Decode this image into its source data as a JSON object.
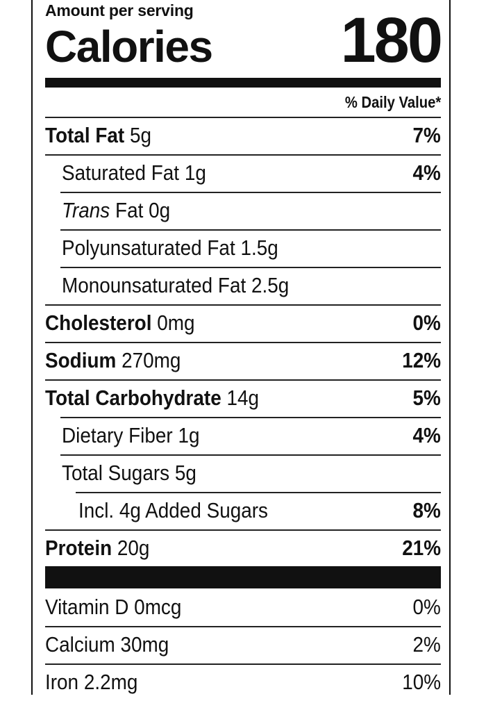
{
  "header": {
    "amount_label": "Amount per serving",
    "calories_label": "Calories",
    "calories_value": "180",
    "daily_value_header": "% Daily Value*"
  },
  "nutrients": [
    {
      "name": "Total Fat",
      "amount": "5g",
      "dv": "7%"
    },
    {
      "name": "Saturated Fat",
      "amount": "1g",
      "dv": "4%"
    },
    {
      "name_italic": "Trans",
      "name": "Fat",
      "amount": "0g"
    },
    {
      "name": "Polyunsaturated Fat",
      "amount": "1.5g"
    },
    {
      "name": "Monounsaturated Fat",
      "amount": "2.5g"
    },
    {
      "name": "Cholesterol",
      "amount": "0mg",
      "dv": "0%"
    },
    {
      "name": "Sodium",
      "amount": "270mg",
      "dv": "12%"
    },
    {
      "name": "Total Carbohydrate",
      "amount": "14g",
      "dv": "5%"
    },
    {
      "name": "Dietary Fiber",
      "amount": "1g",
      "dv": "4%"
    },
    {
      "name": "Total Sugars",
      "amount": "5g"
    },
    {
      "text": "Incl. 4g Added Sugars",
      "dv": "8%"
    },
    {
      "name": "Protein",
      "amount": "20g",
      "dv": "21%"
    }
  ],
  "vitamins": [
    {
      "text": "Vitamin D 0mcg",
      "dv": "0%"
    },
    {
      "text": "Calcium 30mg",
      "dv": "2%"
    },
    {
      "text": "Iron 2.2mg",
      "dv": "10%"
    }
  ]
}
